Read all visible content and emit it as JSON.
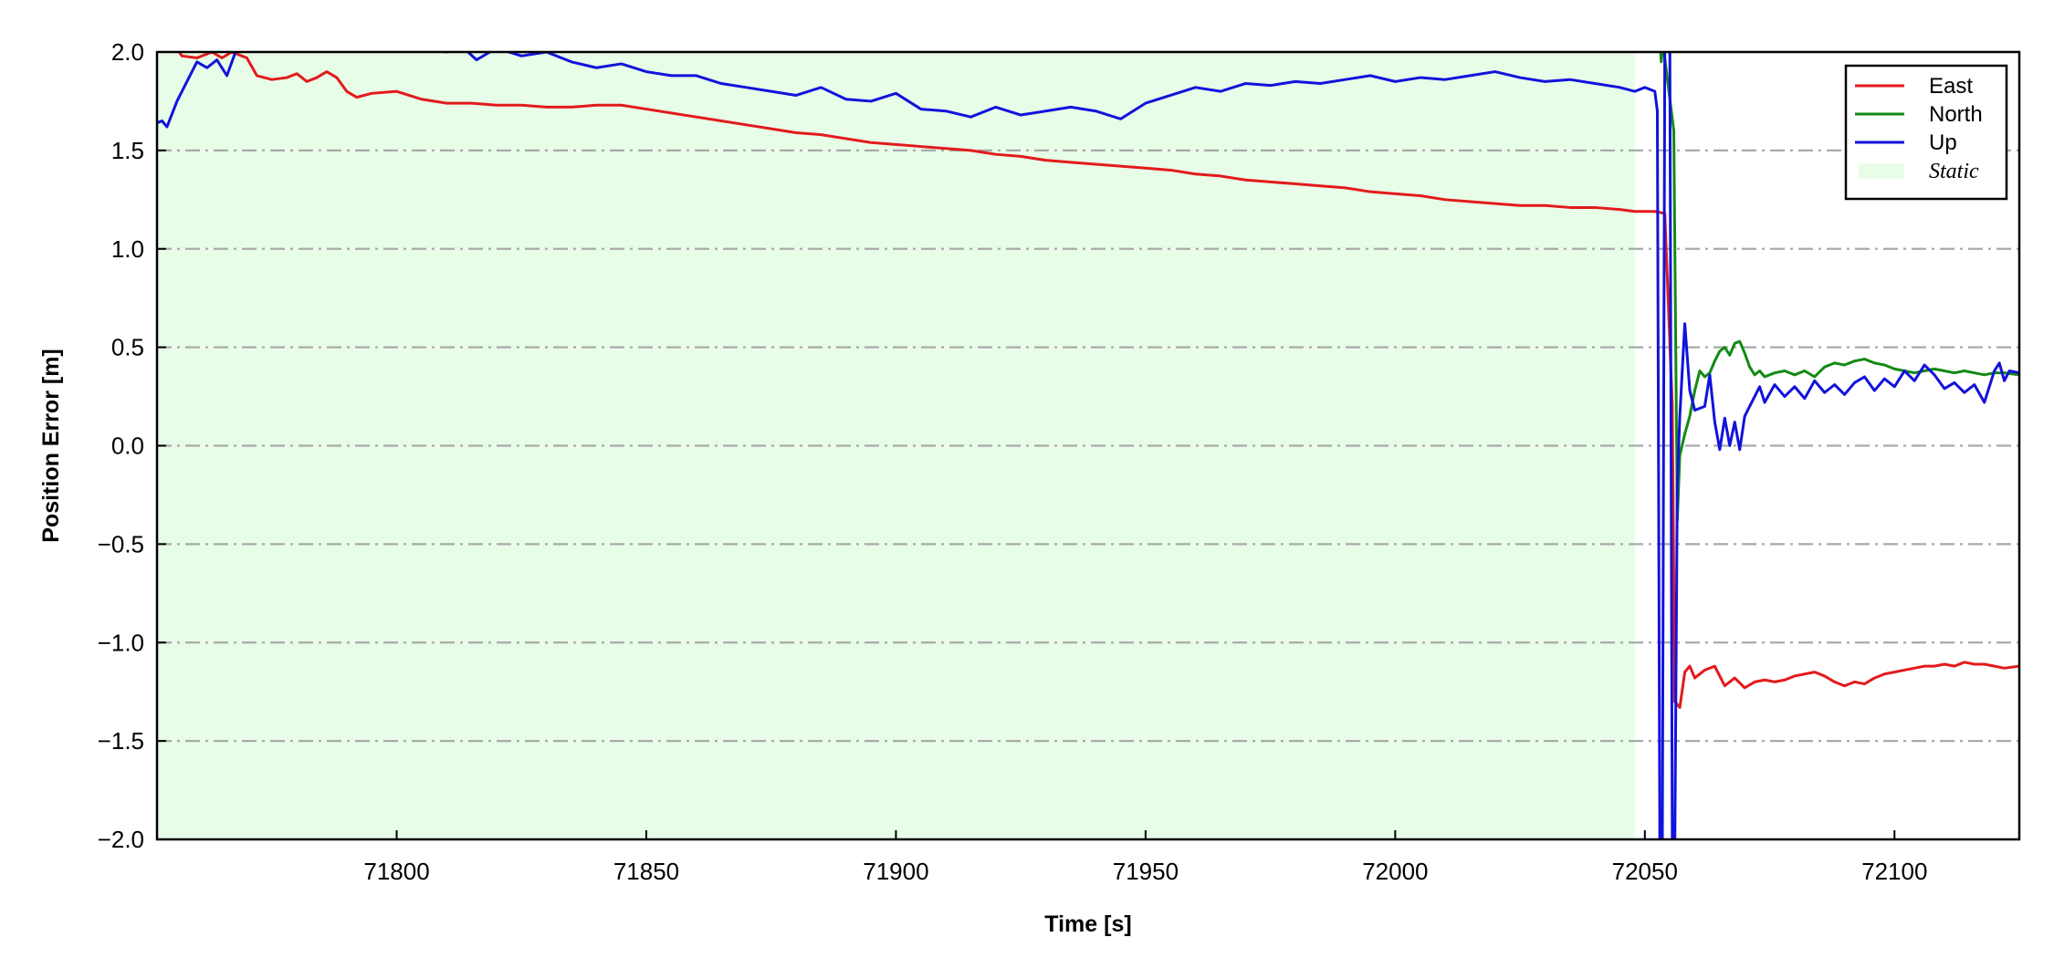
{
  "chart_data": {
    "type": "line",
    "title": "",
    "xlabel": "Time [s]",
    "ylabel": "Position Error [m]",
    "xlim": [
      71752,
      72125
    ],
    "ylim": [
      -2.0,
      2.0
    ],
    "x_ticks": [
      71800,
      71850,
      71900,
      71950,
      72000,
      72050,
      72100
    ],
    "x_tick_labels": [
      "71800",
      "71850",
      "71900",
      "71950",
      "72000",
      "72050",
      "72100"
    ],
    "y_ticks": [
      2.0,
      1.5,
      1.0,
      0.5,
      0.0,
      -0.5,
      -1.0,
      -1.5,
      -2.0
    ],
    "y_tick_labels": [
      "2.0",
      "1.5",
      "1.0",
      "0.5",
      "0.0",
      "−0.5",
      "−1.0",
      "−1.5",
      "−2.0"
    ],
    "grid": "horizontal dash-dot",
    "legend_position": "top-right",
    "static_region": {
      "label": "Static",
      "x_start": 71752,
      "x_end": 72048,
      "color": "#e8fde8"
    },
    "series": [
      {
        "name": "East",
        "color": "#e31a1c",
        "points": [
          [
            71752,
            2.02
          ],
          [
            71755,
            2.05
          ],
          [
            71757,
            1.98
          ],
          [
            71760,
            1.97
          ],
          [
            71763,
            2.0
          ],
          [
            71765,
            1.97
          ],
          [
            71767,
            2.0
          ],
          [
            71770,
            1.97
          ],
          [
            71772,
            1.88
          ],
          [
            71775,
            1.86
          ],
          [
            71778,
            1.87
          ],
          [
            71780,
            1.89
          ],
          [
            71782,
            1.85
          ],
          [
            71784,
            1.87
          ],
          [
            71786,
            1.9
          ],
          [
            71788,
            1.87
          ],
          [
            71790,
            1.8
          ],
          [
            71792,
            1.77
          ],
          [
            71795,
            1.79
          ],
          [
            71800,
            1.8
          ],
          [
            71805,
            1.76
          ],
          [
            71810,
            1.74
          ],
          [
            71815,
            1.74
          ],
          [
            71820,
            1.73
          ],
          [
            71825,
            1.73
          ],
          [
            71830,
            1.72
          ],
          [
            71835,
            1.72
          ],
          [
            71840,
            1.73
          ],
          [
            71845,
            1.73
          ],
          [
            71850,
            1.71
          ],
          [
            71855,
            1.69
          ],
          [
            71860,
            1.67
          ],
          [
            71865,
            1.65
          ],
          [
            71870,
            1.63
          ],
          [
            71875,
            1.61
          ],
          [
            71880,
            1.59
          ],
          [
            71885,
            1.58
          ],
          [
            71890,
            1.56
          ],
          [
            71895,
            1.54
          ],
          [
            71900,
            1.53
          ],
          [
            71905,
            1.52
          ],
          [
            71910,
            1.51
          ],
          [
            71915,
            1.5
          ],
          [
            71920,
            1.48
          ],
          [
            71925,
            1.47
          ],
          [
            71930,
            1.45
          ],
          [
            71935,
            1.44
          ],
          [
            71940,
            1.43
          ],
          [
            71945,
            1.42
          ],
          [
            71950,
            1.41
          ],
          [
            71955,
            1.4
          ],
          [
            71960,
            1.38
          ],
          [
            71965,
            1.37
          ],
          [
            71970,
            1.35
          ],
          [
            71975,
            1.34
          ],
          [
            71980,
            1.33
          ],
          [
            71985,
            1.32
          ],
          [
            71990,
            1.31
          ],
          [
            71995,
            1.29
          ],
          [
            72000,
            1.28
          ],
          [
            72005,
            1.27
          ],
          [
            72010,
            1.25
          ],
          [
            72015,
            1.24
          ],
          [
            72020,
            1.23
          ],
          [
            72025,
            1.22
          ],
          [
            72030,
            1.22
          ],
          [
            72035,
            1.21
          ],
          [
            72040,
            1.21
          ],
          [
            72045,
            1.2
          ],
          [
            72048,
            1.19
          ],
          [
            72050,
            1.19
          ],
          [
            72052,
            1.19
          ],
          [
            72054,
            1.18
          ],
          [
            72055.5,
            0.2
          ],
          [
            72056,
            -1.3
          ],
          [
            72057,
            -1.33
          ],
          [
            72058,
            -1.15
          ],
          [
            72059,
            -1.12
          ],
          [
            72060,
            -1.18
          ],
          [
            72062,
            -1.14
          ],
          [
            72064,
            -1.12
          ],
          [
            72066,
            -1.22
          ],
          [
            72068,
            -1.18
          ],
          [
            72070,
            -1.23
          ],
          [
            72072,
            -1.2
          ],
          [
            72074,
            -1.19
          ],
          [
            72076,
            -1.2
          ],
          [
            72078,
            -1.19
          ],
          [
            72080,
            -1.17
          ],
          [
            72082,
            -1.16
          ],
          [
            72084,
            -1.15
          ],
          [
            72086,
            -1.17
          ],
          [
            72088,
            -1.2
          ],
          [
            72090,
            -1.22
          ],
          [
            72092,
            -1.2
          ],
          [
            72094,
            -1.21
          ],
          [
            72096,
            -1.18
          ],
          [
            72098,
            -1.16
          ],
          [
            72100,
            -1.15
          ],
          [
            72102,
            -1.14
          ],
          [
            72104,
            -1.13
          ],
          [
            72106,
            -1.12
          ],
          [
            72108,
            -1.12
          ],
          [
            72110,
            -1.11
          ],
          [
            72112,
            -1.12
          ],
          [
            72114,
            -1.1
          ],
          [
            72116,
            -1.11
          ],
          [
            72118,
            -1.11
          ],
          [
            72120,
            -1.12
          ],
          [
            72122,
            -1.13
          ],
          [
            72125,
            -1.12
          ]
        ]
      },
      {
        "name": "North",
        "color": "#138a13",
        "points": [
          [
            72053,
            2.05
          ],
          [
            72053.3,
            1.95
          ],
          [
            72053.6,
            2.05
          ],
          [
            72055.8,
            1.6
          ],
          [
            72056.5,
            -0.38
          ],
          [
            72057,
            -0.05
          ],
          [
            72058,
            0.06
          ],
          [
            72059,
            0.15
          ],
          [
            72060,
            0.28
          ],
          [
            72061,
            0.38
          ],
          [
            72062,
            0.35
          ],
          [
            72063,
            0.37
          ],
          [
            72064,
            0.43
          ],
          [
            72065,
            0.48
          ],
          [
            72066,
            0.5
          ],
          [
            72067,
            0.46
          ],
          [
            72068,
            0.52
          ],
          [
            72069,
            0.53
          ],
          [
            72070,
            0.47
          ],
          [
            72071,
            0.4
          ],
          [
            72072,
            0.36
          ],
          [
            72073,
            0.38
          ],
          [
            72074,
            0.35
          ],
          [
            72076,
            0.37
          ],
          [
            72078,
            0.38
          ],
          [
            72080,
            0.36
          ],
          [
            72082,
            0.38
          ],
          [
            72084,
            0.35
          ],
          [
            72086,
            0.4
          ],
          [
            72088,
            0.42
          ],
          [
            72090,
            0.41
          ],
          [
            72092,
            0.43
          ],
          [
            72094,
            0.44
          ],
          [
            72096,
            0.42
          ],
          [
            72098,
            0.41
          ],
          [
            72100,
            0.39
          ],
          [
            72102,
            0.38
          ],
          [
            72104,
            0.37
          ],
          [
            72106,
            0.38
          ],
          [
            72108,
            0.39
          ],
          [
            72110,
            0.38
          ],
          [
            72112,
            0.37
          ],
          [
            72114,
            0.38
          ],
          [
            72116,
            0.37
          ],
          [
            72118,
            0.36
          ],
          [
            72120,
            0.37
          ],
          [
            72122,
            0.37
          ],
          [
            72125,
            0.36
          ]
        ]
      },
      {
        "name": "Up",
        "color": "#1212dc",
        "points": [
          [
            71752,
            1.64
          ],
          [
            71753,
            1.65
          ],
          [
            71754,
            1.62
          ],
          [
            71756,
            1.75
          ],
          [
            71758,
            1.85
          ],
          [
            71760,
            1.95
          ],
          [
            71762,
            1.92
          ],
          [
            71764,
            1.96
          ],
          [
            71766,
            1.88
          ],
          [
            71768,
            2.02
          ],
          [
            71770,
            2.05
          ],
          [
            71772,
            2.05
          ],
          [
            71800,
            2.05
          ],
          [
            71810,
            2.0
          ],
          [
            71813,
            2.03
          ],
          [
            71816,
            1.96
          ],
          [
            71820,
            2.02
          ],
          [
            71825,
            1.98
          ],
          [
            71830,
            2.0
          ],
          [
            71835,
            1.95
          ],
          [
            71840,
            1.92
          ],
          [
            71845,
            1.94
          ],
          [
            71850,
            1.9
          ],
          [
            71855,
            1.88
          ],
          [
            71860,
            1.88
          ],
          [
            71865,
            1.84
          ],
          [
            71870,
            1.82
          ],
          [
            71875,
            1.8
          ],
          [
            71880,
            1.78
          ],
          [
            71885,
            1.82
          ],
          [
            71890,
            1.76
          ],
          [
            71895,
            1.75
          ],
          [
            71900,
            1.79
          ],
          [
            71905,
            1.71
          ],
          [
            71910,
            1.7
          ],
          [
            71915,
            1.67
          ],
          [
            71920,
            1.72
          ],
          [
            71925,
            1.68
          ],
          [
            71930,
            1.7
          ],
          [
            71935,
            1.72
          ],
          [
            71940,
            1.7
          ],
          [
            71945,
            1.66
          ],
          [
            71950,
            1.74
          ],
          [
            71955,
            1.78
          ],
          [
            71960,
            1.82
          ],
          [
            71965,
            1.8
          ],
          [
            71970,
            1.84
          ],
          [
            71975,
            1.83
          ],
          [
            71980,
            1.85
          ],
          [
            71985,
            1.84
          ],
          [
            71990,
            1.86
          ],
          [
            71995,
            1.88
          ],
          [
            72000,
            1.85
          ],
          [
            72005,
            1.87
          ],
          [
            72010,
            1.86
          ],
          [
            72015,
            1.88
          ],
          [
            72020,
            1.9
          ],
          [
            72025,
            1.87
          ],
          [
            72030,
            1.85
          ],
          [
            72035,
            1.86
          ],
          [
            72040,
            1.84
          ],
          [
            72045,
            1.82
          ],
          [
            72048,
            1.8
          ],
          [
            72050,
            1.82
          ],
          [
            72052,
            1.8
          ],
          [
            72052.5,
            1.7
          ],
          [
            72053,
            -2.05
          ],
          [
            72053.5,
            -2.05
          ],
          [
            72054,
            2.05
          ],
          [
            72055,
            2.05
          ],
          [
            72055.5,
            -2.05
          ],
          [
            72056,
            -2.05
          ],
          [
            72056.5,
            -0.2
          ],
          [
            72057,
            0.15
          ],
          [
            72058,
            0.62
          ],
          [
            72059,
            0.28
          ],
          [
            72060,
            0.18
          ],
          [
            72062,
            0.2
          ],
          [
            72063,
            0.36
          ],
          [
            72064,
            0.12
          ],
          [
            72065,
            -0.02
          ],
          [
            72066,
            0.14
          ],
          [
            72067,
            0.0
          ],
          [
            72068,
            0.12
          ],
          [
            72069,
            -0.02
          ],
          [
            72070,
            0.15
          ],
          [
            72071,
            0.2
          ],
          [
            72072,
            0.25
          ],
          [
            72073,
            0.3
          ],
          [
            72074,
            0.22
          ],
          [
            72076,
            0.31
          ],
          [
            72078,
            0.25
          ],
          [
            72080,
            0.3
          ],
          [
            72082,
            0.24
          ],
          [
            72084,
            0.33
          ],
          [
            72086,
            0.27
          ],
          [
            72088,
            0.31
          ],
          [
            72090,
            0.26
          ],
          [
            72092,
            0.32
          ],
          [
            72094,
            0.35
          ],
          [
            72096,
            0.28
          ],
          [
            72098,
            0.34
          ],
          [
            72100,
            0.3
          ],
          [
            72102,
            0.38
          ],
          [
            72104,
            0.33
          ],
          [
            72106,
            0.41
          ],
          [
            72108,
            0.36
          ],
          [
            72110,
            0.29
          ],
          [
            72112,
            0.32
          ],
          [
            72114,
            0.27
          ],
          [
            72116,
            0.31
          ],
          [
            72118,
            0.22
          ],
          [
            72120,
            0.38
          ],
          [
            72121,
            0.42
          ],
          [
            72122,
            0.33
          ],
          [
            72123,
            0.38
          ],
          [
            72125,
            0.37
          ]
        ]
      }
    ]
  }
}
